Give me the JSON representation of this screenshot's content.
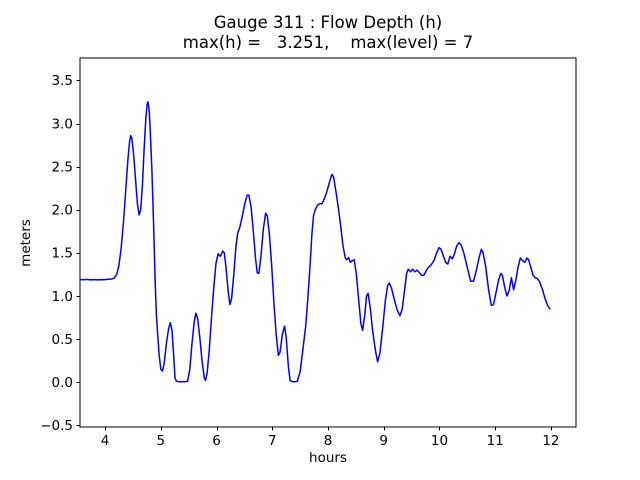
{
  "figure": {
    "title_line1": "Gauge 311 : Flow Depth (h)",
    "title_line2": "max(h) =   3.251,    max(level) = 7",
    "xlabel": "hours",
    "ylabel": "meters"
  },
  "chart_data": {
    "type": "line",
    "title": "Gauge 311 : Flow Depth (h)",
    "subtitle": "max(h) =   3.251,    max(level) = 7",
    "xlabel": "hours",
    "ylabel": "meters",
    "max_h": 3.251,
    "max_level": 7,
    "xlim": [
      3.55,
      12.45
    ],
    "ylim": [
      -0.52,
      3.76
    ],
    "x_ticks": [
      4,
      5,
      6,
      7,
      8,
      9,
      10,
      11,
      12
    ],
    "y_ticks": [
      -0.5,
      0.0,
      0.5,
      1.0,
      1.5,
      2.0,
      2.5,
      3.0,
      3.5
    ],
    "grid": false,
    "legend": "none",
    "line_color": "#0000ff",
    "line_width": 1.5,
    "series": [
      {
        "name": "h",
        "points": [
          [
            3.553,
            1.19
          ],
          [
            3.62,
            1.188
          ],
          [
            3.68,
            1.192
          ],
          [
            3.74,
            1.186
          ],
          [
            3.8,
            1.19
          ],
          [
            3.86,
            1.186
          ],
          [
            3.92,
            1.19
          ],
          [
            3.98,
            1.188
          ],
          [
            4.04,
            1.192
          ],
          [
            4.1,
            1.196
          ],
          [
            4.16,
            1.205
          ],
          [
            4.21,
            1.25
          ],
          [
            4.25,
            1.36
          ],
          [
            4.29,
            1.56
          ],
          [
            4.33,
            1.86
          ],
          [
            4.37,
            2.22
          ],
          [
            4.41,
            2.58
          ],
          [
            4.44,
            2.79
          ],
          [
            4.46,
            2.86
          ],
          [
            4.48,
            2.83
          ],
          [
            4.51,
            2.66
          ],
          [
            4.55,
            2.33
          ],
          [
            4.58,
            2.07
          ],
          [
            4.61,
            1.94
          ],
          [
            4.64,
            2.0
          ],
          [
            4.67,
            2.28
          ],
          [
            4.7,
            2.7
          ],
          [
            4.73,
            3.05
          ],
          [
            4.755,
            3.23
          ],
          [
            4.77,
            3.251
          ],
          [
            4.79,
            3.17
          ],
          [
            4.81,
            2.93
          ],
          [
            4.84,
            2.46
          ],
          [
            4.87,
            1.83
          ],
          [
            4.9,
            1.15
          ],
          [
            4.92,
            0.78
          ],
          [
            4.945,
            0.55
          ],
          [
            4.97,
            0.32
          ],
          [
            5.0,
            0.15
          ],
          [
            5.03,
            0.13
          ],
          [
            5.06,
            0.22
          ],
          [
            5.1,
            0.45
          ],
          [
            5.14,
            0.62
          ],
          [
            5.17,
            0.69
          ],
          [
            5.2,
            0.6
          ],
          [
            5.23,
            0.32
          ],
          [
            5.255,
            0.05
          ],
          [
            5.28,
            0.01
          ],
          [
            5.33,
            0.005
          ],
          [
            5.38,
            0.005
          ],
          [
            5.43,
            0.005
          ],
          [
            5.48,
            0.01
          ],
          [
            5.52,
            0.15
          ],
          [
            5.56,
            0.45
          ],
          [
            5.6,
            0.7
          ],
          [
            5.63,
            0.8
          ],
          [
            5.66,
            0.74
          ],
          [
            5.7,
            0.52
          ],
          [
            5.74,
            0.25
          ],
          [
            5.78,
            0.05
          ],
          [
            5.8,
            0.02
          ],
          [
            5.83,
            0.1
          ],
          [
            5.87,
            0.38
          ],
          [
            5.91,
            0.75
          ],
          [
            5.95,
            1.1
          ],
          [
            5.99,
            1.38
          ],
          [
            6.03,
            1.49
          ],
          [
            6.07,
            1.46
          ],
          [
            6.11,
            1.52
          ],
          [
            6.14,
            1.5
          ],
          [
            6.17,
            1.33
          ],
          [
            6.21,
            1.05
          ],
          [
            6.24,
            0.9
          ],
          [
            6.27,
            0.97
          ],
          [
            6.31,
            1.25
          ],
          [
            6.35,
            1.58
          ],
          [
            6.38,
            1.73
          ],
          [
            6.42,
            1.8
          ],
          [
            6.46,
            1.92
          ],
          [
            6.51,
            2.08
          ],
          [
            6.55,
            2.17
          ],
          [
            6.58,
            2.17
          ],
          [
            6.62,
            2.03
          ],
          [
            6.66,
            1.75
          ],
          [
            6.7,
            1.43
          ],
          [
            6.73,
            1.27
          ],
          [
            6.76,
            1.26
          ],
          [
            6.8,
            1.48
          ],
          [
            6.84,
            1.78
          ],
          [
            6.88,
            1.96
          ],
          [
            6.91,
            1.93
          ],
          [
            6.95,
            1.7
          ],
          [
            6.99,
            1.35
          ],
          [
            7.03,
            0.92
          ],
          [
            7.07,
            0.55
          ],
          [
            7.11,
            0.31
          ],
          [
            7.14,
            0.35
          ],
          [
            7.18,
            0.55
          ],
          [
            7.22,
            0.65
          ],
          [
            7.25,
            0.52
          ],
          [
            7.29,
            0.18
          ],
          [
            7.32,
            0.02
          ],
          [
            7.36,
            0.005
          ],
          [
            7.41,
            0.005
          ],
          [
            7.45,
            0.01
          ],
          [
            7.5,
            0.12
          ],
          [
            7.55,
            0.38
          ],
          [
            7.6,
            0.65
          ],
          [
            7.64,
            0.98
          ],
          [
            7.68,
            1.38
          ],
          [
            7.71,
            1.7
          ],
          [
            7.74,
            1.93
          ],
          [
            7.77,
            2.0
          ],
          [
            7.81,
            2.05
          ],
          [
            7.85,
            2.07
          ],
          [
            7.89,
            2.07
          ],
          [
            7.93,
            2.12
          ],
          [
            7.98,
            2.21
          ],
          [
            8.03,
            2.33
          ],
          [
            8.07,
            2.41
          ],
          [
            8.1,
            2.38
          ],
          [
            8.14,
            2.22
          ],
          [
            8.19,
            2.0
          ],
          [
            8.23,
            1.8
          ],
          [
            8.27,
            1.58
          ],
          [
            8.31,
            1.44
          ],
          [
            8.34,
            1.42
          ],
          [
            8.37,
            1.445
          ],
          [
            8.4,
            1.39
          ],
          [
            8.44,
            1.41
          ],
          [
            8.47,
            1.42
          ],
          [
            8.51,
            1.25
          ],
          [
            8.55,
            0.95
          ],
          [
            8.59,
            0.68
          ],
          [
            8.62,
            0.6
          ],
          [
            8.66,
            0.78
          ],
          [
            8.69,
            1.0
          ],
          [
            8.72,
            1.03
          ],
          [
            8.76,
            0.85
          ],
          [
            8.8,
            0.6
          ],
          [
            8.85,
            0.37
          ],
          [
            8.89,
            0.235
          ],
          [
            8.93,
            0.33
          ],
          [
            8.98,
            0.62
          ],
          [
            9.03,
            0.95
          ],
          [
            9.07,
            1.12
          ],
          [
            9.1,
            1.15
          ],
          [
            9.14,
            1.09
          ],
          [
            9.19,
            0.96
          ],
          [
            9.24,
            0.84
          ],
          [
            9.29,
            0.77
          ],
          [
            9.33,
            0.84
          ],
          [
            9.37,
            1.05
          ],
          [
            9.41,
            1.26
          ],
          [
            9.44,
            1.31
          ],
          [
            9.48,
            1.28
          ],
          [
            9.52,
            1.31
          ],
          [
            9.56,
            1.28
          ],
          [
            9.6,
            1.3
          ],
          [
            9.64,
            1.27
          ],
          [
            9.68,
            1.24
          ],
          [
            9.72,
            1.24
          ],
          [
            9.76,
            1.29
          ],
          [
            9.8,
            1.33
          ],
          [
            9.85,
            1.36
          ],
          [
            9.9,
            1.41
          ],
          [
            9.95,
            1.5
          ],
          [
            9.99,
            1.56
          ],
          [
            10.03,
            1.54
          ],
          [
            10.07,
            1.46
          ],
          [
            10.11,
            1.39
          ],
          [
            10.15,
            1.37
          ],
          [
            10.19,
            1.46
          ],
          [
            10.23,
            1.43
          ],
          [
            10.27,
            1.49
          ],
          [
            10.31,
            1.58
          ],
          [
            10.35,
            1.62
          ],
          [
            10.39,
            1.59
          ],
          [
            10.44,
            1.49
          ],
          [
            10.5,
            1.33
          ],
          [
            10.56,
            1.17
          ],
          [
            10.61,
            1.17
          ],
          [
            10.66,
            1.29
          ],
          [
            10.71,
            1.44
          ],
          [
            10.75,
            1.54
          ],
          [
            10.78,
            1.51
          ],
          [
            10.83,
            1.34
          ],
          [
            10.88,
            1.08
          ],
          [
            10.93,
            0.89
          ],
          [
            10.97,
            0.9
          ],
          [
            11.01,
            1.02
          ],
          [
            11.06,
            1.18
          ],
          [
            11.1,
            1.26
          ],
          [
            11.13,
            1.24
          ],
          [
            11.17,
            1.1
          ],
          [
            11.21,
            1.0
          ],
          [
            11.25,
            1.06
          ],
          [
            11.29,
            1.21
          ],
          [
            11.33,
            1.07
          ],
          [
            11.37,
            1.18
          ],
          [
            11.41,
            1.33
          ],
          [
            11.45,
            1.44
          ],
          [
            11.49,
            1.41
          ],
          [
            11.53,
            1.39
          ],
          [
            11.57,
            1.44
          ],
          [
            11.6,
            1.42
          ],
          [
            11.64,
            1.33
          ],
          [
            11.68,
            1.24
          ],
          [
            11.72,
            1.21
          ],
          [
            11.76,
            1.2
          ],
          [
            11.8,
            1.16
          ],
          [
            11.85,
            1.07
          ],
          [
            11.9,
            0.96
          ],
          [
            11.94,
            0.89
          ],
          [
            11.98,
            0.85
          ]
        ]
      }
    ]
  }
}
